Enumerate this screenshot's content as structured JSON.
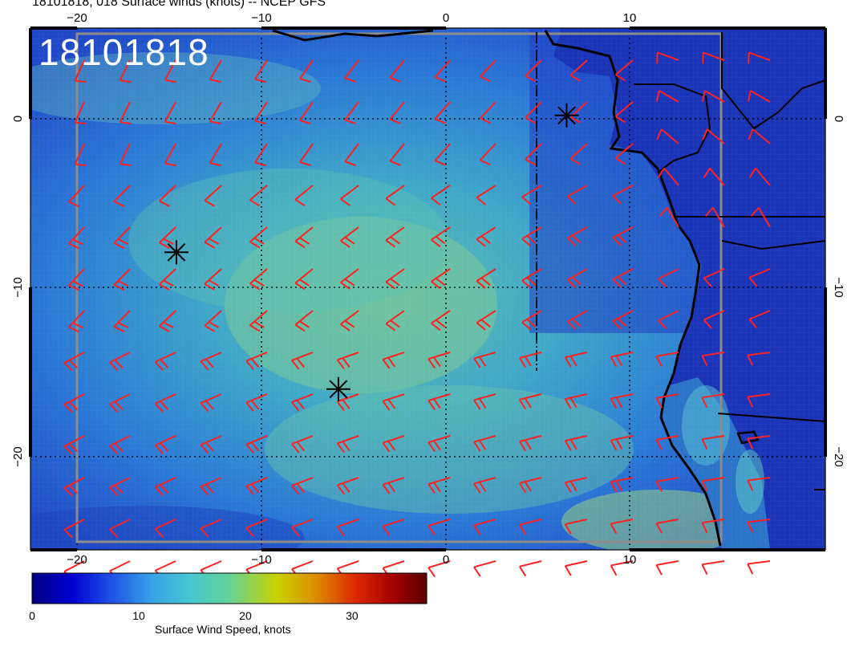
{
  "header": {
    "title": "18101818, 018 Surface winds (knots) -- NCEP GFS"
  },
  "map": {
    "stamp": "18101818",
    "lon_labels": [
      "−20",
      "−10",
      "0",
      "10"
    ],
    "lat_labels": [
      "0",
      "−10",
      "−20"
    ],
    "lon_range": [
      -22.5,
      20.5
    ],
    "lat_range": [
      -25.5,
      5
    ]
  },
  "markers": [
    {
      "lon": 6.6,
      "lat": 0.2
    },
    {
      "lon": -14.6,
      "lat": -7.9
    },
    {
      "lon": -5.8,
      "lat": -16
    }
  ],
  "colorbar": {
    "title": "Surface Wind Speed, knots",
    "tick_labels": [
      "0",
      "10",
      "20",
      "30"
    ],
    "ticks": [
      0,
      10,
      20,
      30
    ],
    "range": [
      0,
      37
    ],
    "colors": [
      "#00007f",
      "#0000d0",
      "#1e50e6",
      "#37a0e6",
      "#46c8d2",
      "#64d296",
      "#c8d200",
      "#dc8c00",
      "#dc2800",
      "#a00000",
      "#5a0000"
    ]
  },
  "colors": {
    "ocean_deep": "#1f3cc8",
    "ocean_light": "#46b4be",
    "wind_green": "#6ec8a0",
    "land": "#1432b4",
    "barb": "#ff2020",
    "coast": "#000000"
  }
}
